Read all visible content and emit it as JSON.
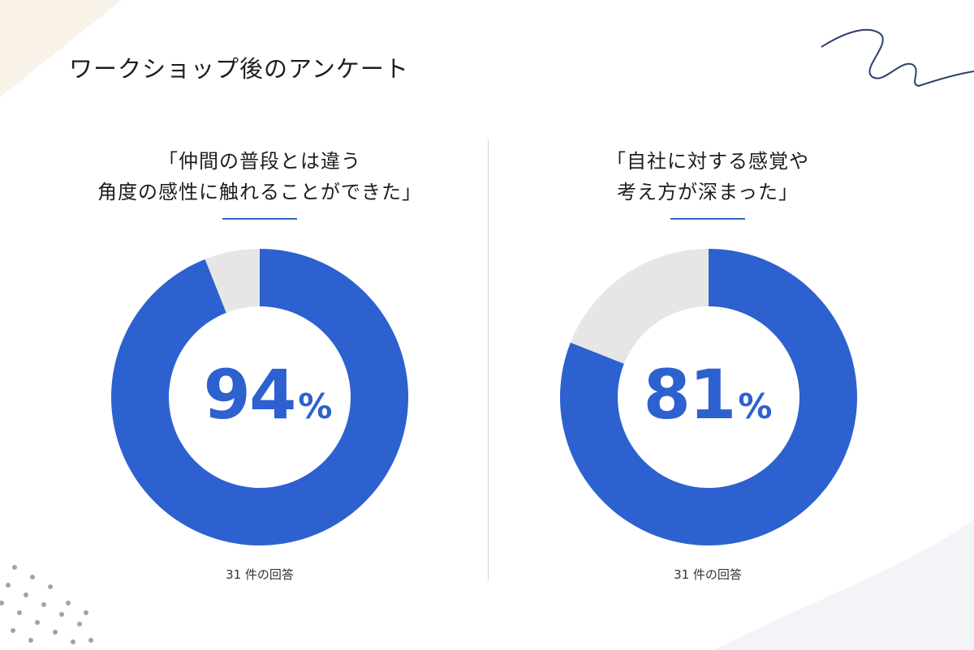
{
  "title": "ワークショップ後のアンケート",
  "colors": {
    "primary": "#2c61cf",
    "remainder": "#e6e6e6",
    "rule": "#3366cc",
    "text": "#1e1e1e"
  },
  "chart_data": [
    {
      "type": "pie",
      "heading_lines": [
        "「仲間の普段とは違う",
        "角度の感性に触れることができた」"
      ],
      "values": [
        94,
        6
      ],
      "center_value": "94",
      "center_unit": "%",
      "responses": "31 件の回答"
    },
    {
      "type": "pie",
      "heading_lines": [
        "「自社に対する感覚や",
        "考え方が深まった」"
      ],
      "values": [
        81,
        19
      ],
      "center_value": "81",
      "center_unit": "%",
      "responses": "31 件の回答"
    }
  ]
}
